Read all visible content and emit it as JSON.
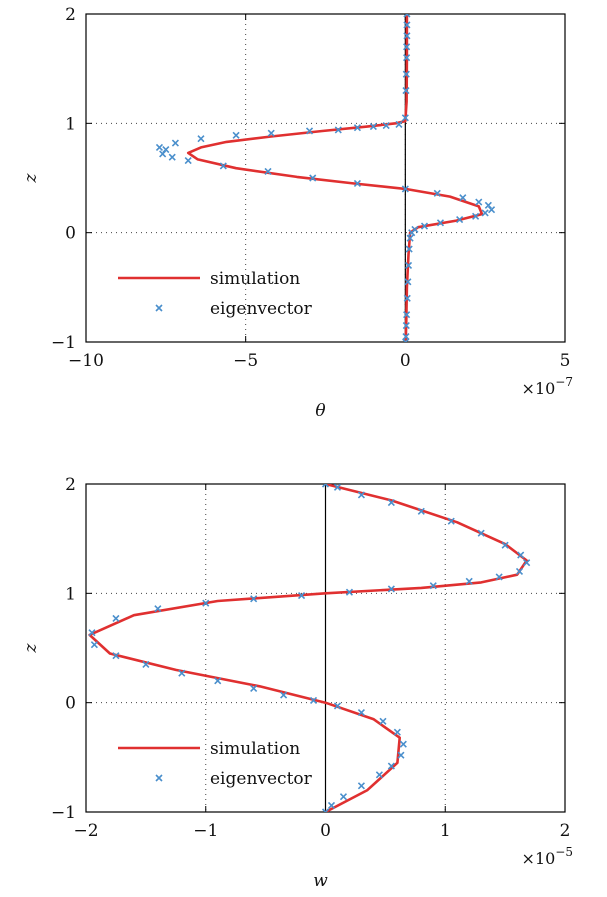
{
  "chart_data": [
    {
      "type": "line",
      "title": "",
      "xlabel": "θ",
      "ylabel": "z",
      "x_multiplier_label": "×10",
      "x_multiplier_exp": "−7",
      "xlim": [
        -10,
        5
      ],
      "ylim": [
        -1,
        2
      ],
      "xticks": [
        -10,
        -5,
        0,
        5
      ],
      "xtick_labels": [
        "−10",
        "−5",
        "0",
        "5"
      ],
      "yticks": [
        -1,
        0,
        1,
        2
      ],
      "ytick_labels": [
        "−1",
        "0",
        "1",
        "2"
      ],
      "grid": true,
      "legend_position": "lower-left",
      "zero_line_x": 0,
      "series": [
        {
          "name": "simulation",
          "style": "line",
          "color": "#e03030",
          "x": [
            0.05,
            0.05,
            0.04,
            0.0,
            -0.3,
            -1.2,
            -2.6,
            -4.2,
            -5.6,
            -6.4,
            -6.8,
            -6.5,
            -5.3,
            -3.4,
            -1.6,
            0.0,
            1.4,
            2.3,
            2.4,
            1.6,
            0.4,
            0.15,
            0.1,
            0.05,
            0.03,
            0.01
          ],
          "y": [
            2.0,
            1.6,
            1.2,
            1.02,
            1.0,
            0.97,
            0.93,
            0.88,
            0.83,
            0.78,
            0.73,
            0.67,
            0.59,
            0.51,
            0.45,
            0.4,
            0.33,
            0.24,
            0.17,
            0.11,
            0.05,
            0.0,
            -0.2,
            -0.5,
            -0.8,
            -1.0
          ]
        },
        {
          "name": "eigenvector",
          "style": "markers",
          "color": "#4a8fcc",
          "x": [
            0.05,
            0.05,
            0.05,
            0.04,
            0.04,
            0.03,
            0.02,
            0.0,
            -0.2,
            -0.6,
            -1.0,
            -1.5,
            -2.1,
            -3.0,
            -4.2,
            -5.3,
            -6.4,
            -7.2,
            -7.7,
            -7.5,
            -7.6,
            -7.3,
            -6.8,
            -5.7,
            -4.3,
            -2.9,
            -1.5,
            0.0,
            1.0,
            1.8,
            2.3,
            2.6,
            2.7,
            2.5,
            2.2,
            1.7,
            1.1,
            0.6,
            0.3,
            0.2,
            0.15,
            0.12,
            0.1,
            0.08,
            0.06,
            0.04,
            0.03,
            0.02,
            0.01
          ],
          "y": [
            2.0,
            1.9,
            1.8,
            1.7,
            1.6,
            1.45,
            1.3,
            1.05,
            0.99,
            0.98,
            0.97,
            0.96,
            0.94,
            0.93,
            0.91,
            0.89,
            0.86,
            0.82,
            0.78,
            0.76,
            0.72,
            0.69,
            0.66,
            0.61,
            0.56,
            0.5,
            0.45,
            0.4,
            0.36,
            0.32,
            0.28,
            0.25,
            0.21,
            0.18,
            0.15,
            0.12,
            0.09,
            0.06,
            0.03,
            0.0,
            -0.05,
            -0.15,
            -0.3,
            -0.45,
            -0.6,
            -0.75,
            -0.85,
            -0.95,
            -1.0
          ]
        }
      ]
    },
    {
      "type": "line",
      "title": "",
      "xlabel": "w",
      "ylabel": "z",
      "x_multiplier_label": "×10",
      "x_multiplier_exp": "−5",
      "xlim": [
        -2,
        2
      ],
      "ylim": [
        -1,
        2
      ],
      "xticks": [
        -2,
        -1,
        0,
        1,
        2
      ],
      "xtick_labels": [
        "−2",
        "−1",
        "0",
        "1",
        "2"
      ],
      "yticks": [
        -1,
        0,
        1,
        2
      ],
      "ytick_labels": [
        "−1",
        "0",
        "1",
        "2"
      ],
      "grid": true,
      "legend_position": "lower-left",
      "zero_line_x": 0,
      "series": [
        {
          "name": "simulation",
          "style": "line",
          "color": "#e03030",
          "x": [
            0.0,
            0.55,
            1.1,
            1.5,
            1.68,
            1.6,
            1.3,
            0.8,
            0.0,
            -0.9,
            -1.6,
            -1.97,
            -1.8,
            -1.25,
            -0.55,
            0.0,
            0.4,
            0.62,
            0.6,
            0.35,
            0.0
          ],
          "y": [
            2.0,
            1.85,
            1.65,
            1.45,
            1.3,
            1.17,
            1.1,
            1.05,
            1.0,
            0.93,
            0.8,
            0.62,
            0.45,
            0.3,
            0.15,
            0.0,
            -0.15,
            -0.32,
            -0.55,
            -0.8,
            -1.0
          ]
        },
        {
          "name": "eigenvector",
          "style": "markers",
          "color": "#4a8fcc",
          "x": [
            0.0,
            0.1,
            0.3,
            0.55,
            0.8,
            1.05,
            1.3,
            1.5,
            1.63,
            1.68,
            1.62,
            1.45,
            1.2,
            0.9,
            0.55,
            0.2,
            -0.2,
            -0.6,
            -1.0,
            -1.4,
            -1.75,
            -1.95,
            -1.93,
            -1.75,
            -1.5,
            -1.2,
            -0.9,
            -0.6,
            -0.35,
            -0.1,
            0.1,
            0.3,
            0.48,
            0.6,
            0.65,
            0.63,
            0.55,
            0.45,
            0.3,
            0.15,
            0.05,
            0.0
          ],
          "y": [
            2.0,
            1.97,
            1.9,
            1.83,
            1.75,
            1.66,
            1.55,
            1.44,
            1.35,
            1.28,
            1.2,
            1.15,
            1.11,
            1.07,
            1.04,
            1.01,
            0.98,
            0.95,
            0.91,
            0.86,
            0.77,
            0.64,
            0.53,
            0.43,
            0.35,
            0.27,
            0.2,
            0.13,
            0.07,
            0.02,
            -0.03,
            -0.09,
            -0.17,
            -0.27,
            -0.38,
            -0.48,
            -0.58,
            -0.66,
            -0.76,
            -0.86,
            -0.94,
            -1.0
          ]
        }
      ]
    }
  ]
}
